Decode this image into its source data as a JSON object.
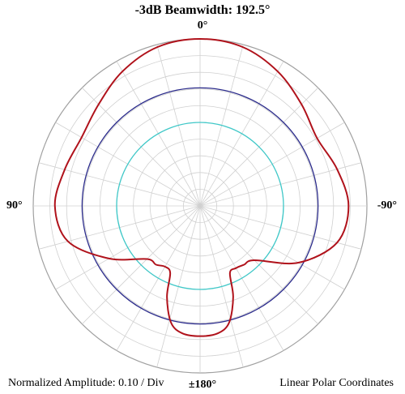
{
  "chart_data": {
    "type": "polar",
    "title": "-3dB Beamwidth: 192.5°",
    "angle_labels": {
      "top": "0°",
      "left": "90°",
      "right": "-90°",
      "bottom": "±180°"
    },
    "footer_left": "Normalized Amplitude: 0.10 / Div",
    "footer_right": "Linear Polar Coordinates",
    "radial_range": [
      0,
      1
    ],
    "radial_step": 0.1,
    "angular_step_deg": 15,
    "grid": true,
    "series": [
      {
        "color": "#b0121b",
        "angles_deg": [
          0,
          15,
          30,
          45,
          60,
          75,
          90,
          105,
          120,
          135,
          143,
          150,
          156,
          160,
          166,
          172,
          180,
          188,
          194,
          200,
          204,
          210,
          217,
          225,
          240,
          255,
          270,
          285,
          300,
          315,
          330,
          345,
          360
        ],
        "values": [
          1.0,
          0.985,
          0.93,
          0.86,
          0.82,
          0.84,
          0.87,
          0.82,
          0.63,
          0.45,
          0.44,
          0.42,
          0.44,
          0.58,
          0.72,
          0.77,
          0.78,
          0.77,
          0.72,
          0.58,
          0.44,
          0.43,
          0.44,
          0.46,
          0.68,
          0.85,
          0.89,
          0.85,
          0.81,
          0.86,
          0.93,
          0.985,
          1.0
        ]
      },
      {
        "color": "#2c2c8c",
        "constant_value": 0.707
      },
      {
        "color": "#40c8c8",
        "constant_value": 0.5
      }
    ]
  }
}
